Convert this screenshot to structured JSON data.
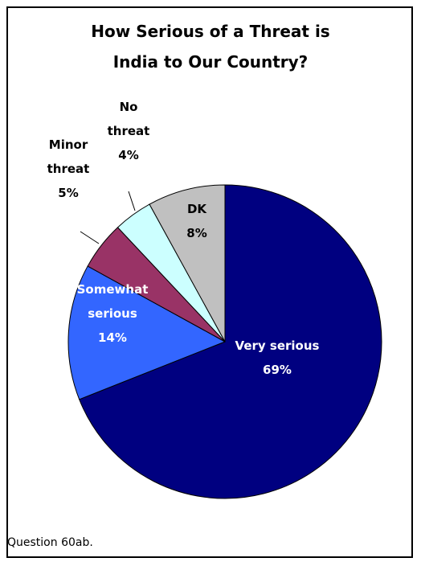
{
  "chart_data": {
    "type": "pie",
    "title_lines": [
      "How Serious of a Threat is",
      "India to Our Country?"
    ],
    "slices": [
      {
        "label_lines": [
          "Very serious"
        ],
        "value": 69,
        "value_label": "69%",
        "color": "#000080",
        "label_color": "#ffffff"
      },
      {
        "label_lines": [
          "Somewhat",
          "serious"
        ],
        "value": 14,
        "value_label": "14%",
        "color": "#3366ff",
        "label_color": "#ffffff"
      },
      {
        "label_lines": [
          "Minor",
          "threat"
        ],
        "value": 5,
        "value_label": "5%",
        "color": "#993366",
        "label_color": "#000000"
      },
      {
        "label_lines": [
          "No",
          "threat"
        ],
        "value": 4,
        "value_label": "4%",
        "color": "#ccffff",
        "label_color": "#000000"
      },
      {
        "label_lines": [
          "DK"
        ],
        "value": 8,
        "value_label": "8%",
        "color": "#c0c0c0",
        "label_color": "#000000"
      }
    ],
    "legend": "none"
  },
  "footnote": "Question 60ab."
}
